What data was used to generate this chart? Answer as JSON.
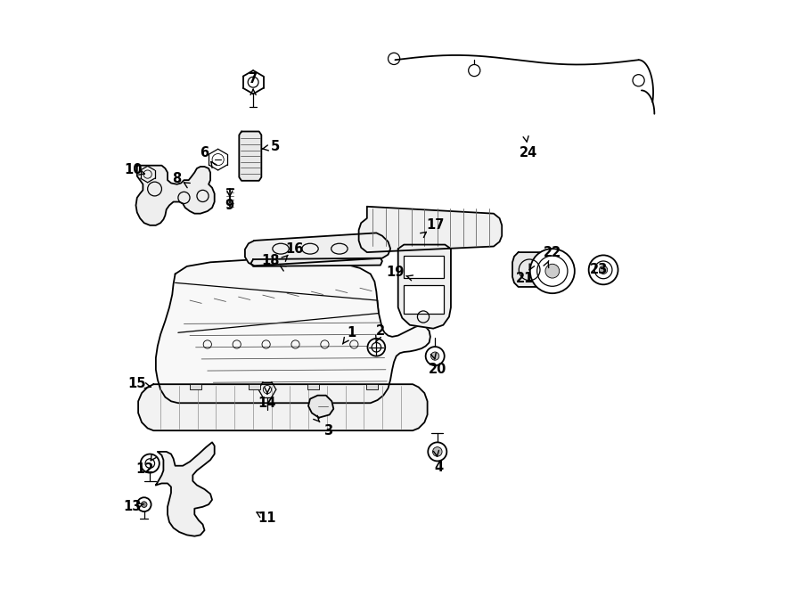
{
  "background_color": "#ffffff",
  "fig_width": 9.0,
  "fig_height": 6.61,
  "dpi": 100,
  "callouts": [
    [
      1,
      0.415,
      0.435,
      0.4,
      0.415
    ],
    [
      2,
      0.465,
      0.438,
      0.457,
      0.418
    ],
    [
      3,
      0.375,
      0.268,
      0.362,
      0.282
    ],
    [
      4,
      0.565,
      0.205,
      0.562,
      0.222
    ],
    [
      5,
      0.285,
      0.752,
      0.262,
      0.748
    ],
    [
      6,
      0.165,
      0.742,
      0.175,
      0.728
    ],
    [
      7,
      0.248,
      0.868,
      0.248,
      0.852
    ],
    [
      8,
      0.118,
      0.698,
      0.128,
      0.692
    ],
    [
      9,
      0.208,
      0.652,
      0.208,
      0.665
    ],
    [
      10,
      0.043,
      0.712,
      0.065,
      0.705
    ],
    [
      11,
      0.272,
      0.118,
      0.252,
      0.13
    ],
    [
      12,
      0.063,
      0.202,
      0.072,
      0.215
    ],
    [
      13,
      0.042,
      0.138,
      0.062,
      0.143
    ],
    [
      14,
      0.272,
      0.315,
      0.272,
      0.33
    ],
    [
      15,
      0.05,
      0.348,
      0.075,
      0.342
    ],
    [
      16,
      0.318,
      0.578,
      0.308,
      0.568
    ],
    [
      17,
      0.558,
      0.618,
      0.545,
      0.608
    ],
    [
      18,
      0.278,
      0.558,
      0.292,
      0.55
    ],
    [
      19,
      0.49,
      0.538,
      0.508,
      0.532
    ],
    [
      20,
      0.562,
      0.372,
      0.558,
      0.388
    ],
    [
      21,
      0.712,
      0.528,
      0.718,
      0.54
    ],
    [
      22,
      0.758,
      0.572,
      0.752,
      0.558
    ],
    [
      23,
      0.838,
      0.542,
      0.838,
      0.542
    ],
    [
      24,
      0.718,
      0.742,
      0.715,
      0.758
    ]
  ]
}
